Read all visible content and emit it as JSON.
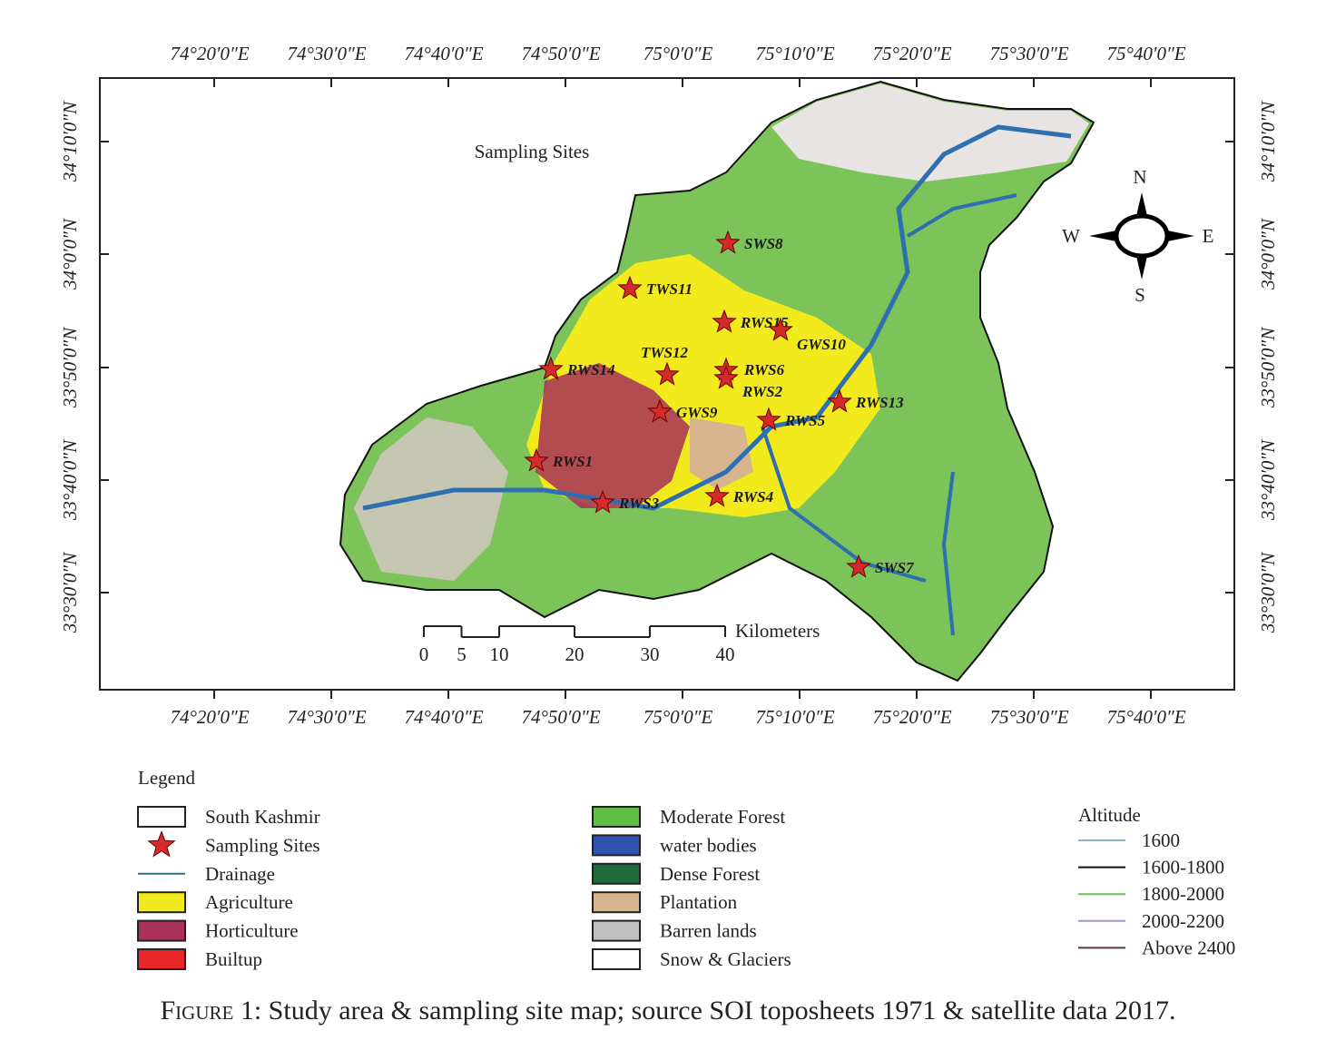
{
  "map": {
    "title": "Sampling Sites",
    "lon_labels": [
      "74°20′0″E",
      "74°30′0″E",
      "74°40′0″E",
      "74°50′0″E",
      "75°0′0″E",
      "75°10′0″E",
      "75°20′0″E",
      "75°30′0″E",
      "75°40′0″E"
    ],
    "lat_labels": [
      "34°10′0″N",
      "34°0′0″N",
      "33°50′0″N",
      "33°40′0″N",
      "33°30′0″N"
    ],
    "compass": {
      "n": "N",
      "s": "S",
      "e": "E",
      "w": "W"
    },
    "sites": [
      "SWS8",
      "TWS11",
      "RWS15",
      "GWS10",
      "TWS12",
      "RWS14",
      "RWS6",
      "RWS2",
      "GWS9",
      "RWS5",
      "RWS13",
      "RWS1",
      "RWS3",
      "RWS4",
      "SWS7"
    ],
    "scale": {
      "ticks": [
        0,
        5,
        10,
        20,
        30,
        40
      ],
      "unit": "Kilometers"
    }
  },
  "legend": {
    "title": "Legend",
    "items": [
      {
        "label": "South Kashmir",
        "color": "#ffffff"
      },
      {
        "label": "Sampling Sites",
        "color": "#d42a2a"
      },
      {
        "label": "Drainage",
        "color": "#2f6f8f"
      },
      {
        "label": "Agriculture",
        "color": "#f2ea1c"
      },
      {
        "label": "Horticulture",
        "color": "#a8305a"
      },
      {
        "label": "Builtup",
        "color": "#e8262a"
      },
      {
        "label": "Moderate Forest",
        "color": "#5fbf45"
      },
      {
        "label": "water bodies",
        "color": "#2f53b0"
      },
      {
        "label": "Dense Forest",
        "color": "#1f6b3a"
      },
      {
        "label": "Plantation",
        "color": "#d7b48e"
      },
      {
        "label": "Barren lands",
        "color": "#c0c0c0"
      },
      {
        "label": "Snow & Glaciers",
        "color": "#ffffff"
      }
    ],
    "altitude": {
      "title": "Altitude",
      "items": [
        {
          "label": "1600",
          "color": "#8fb3c4"
        },
        {
          "label": "1600-1800",
          "color": "#111111"
        },
        {
          "label": "1800-2000",
          "color": "#6fbf5a"
        },
        {
          "label": "2000-2200",
          "color": "#a98fc8"
        },
        {
          "label": "Above 2400",
          "color": "#5a3a3a"
        }
      ]
    }
  },
  "caption": {
    "label": "Figure 1:",
    "text": "Study area & sampling site map; source SOI toposheets 1971 & satellite data 2017."
  }
}
